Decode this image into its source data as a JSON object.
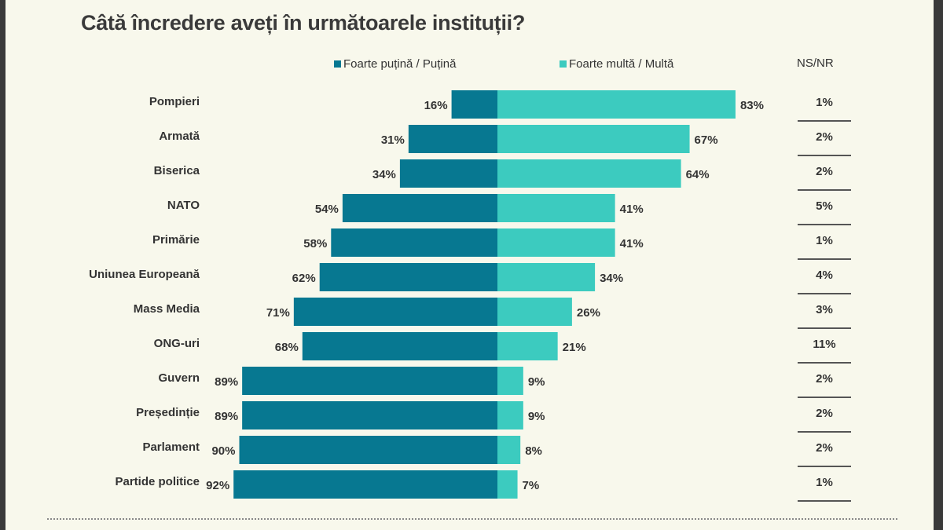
{
  "title": "Câtă încredere aveți în următoarele instituții?",
  "chart_data": {
    "type": "bar",
    "subtype": "diverging-stacked",
    "title": "Câtă încredere aveți în următoarele instituții?",
    "categories": [
      "Pompieri",
      "Armată",
      "Biserica",
      "NATO",
      "Primărie",
      "Uniunea Europeană",
      "Mass Media",
      "ONG-uri",
      "Guvern",
      "Președinție",
      "Parlament",
      "Partide politice"
    ],
    "series": [
      {
        "name": "Foarte puțină / Puțină",
        "color": "#077891",
        "values": [
          16,
          31,
          34,
          54,
          58,
          62,
          71,
          68,
          89,
          89,
          90,
          92
        ]
      },
      {
        "name": "Foarte multă / Multă",
        "color": "#3ccbbf",
        "values": [
          83,
          67,
          64,
          41,
          41,
          34,
          26,
          21,
          9,
          9,
          8,
          7
        ]
      }
    ],
    "ns_nr": {
      "label": "NS/NR",
      "values": [
        1,
        2,
        2,
        5,
        1,
        4,
        3,
        11,
        2,
        2,
        2,
        1
      ]
    },
    "legend": "top",
    "unit": "%"
  }
}
